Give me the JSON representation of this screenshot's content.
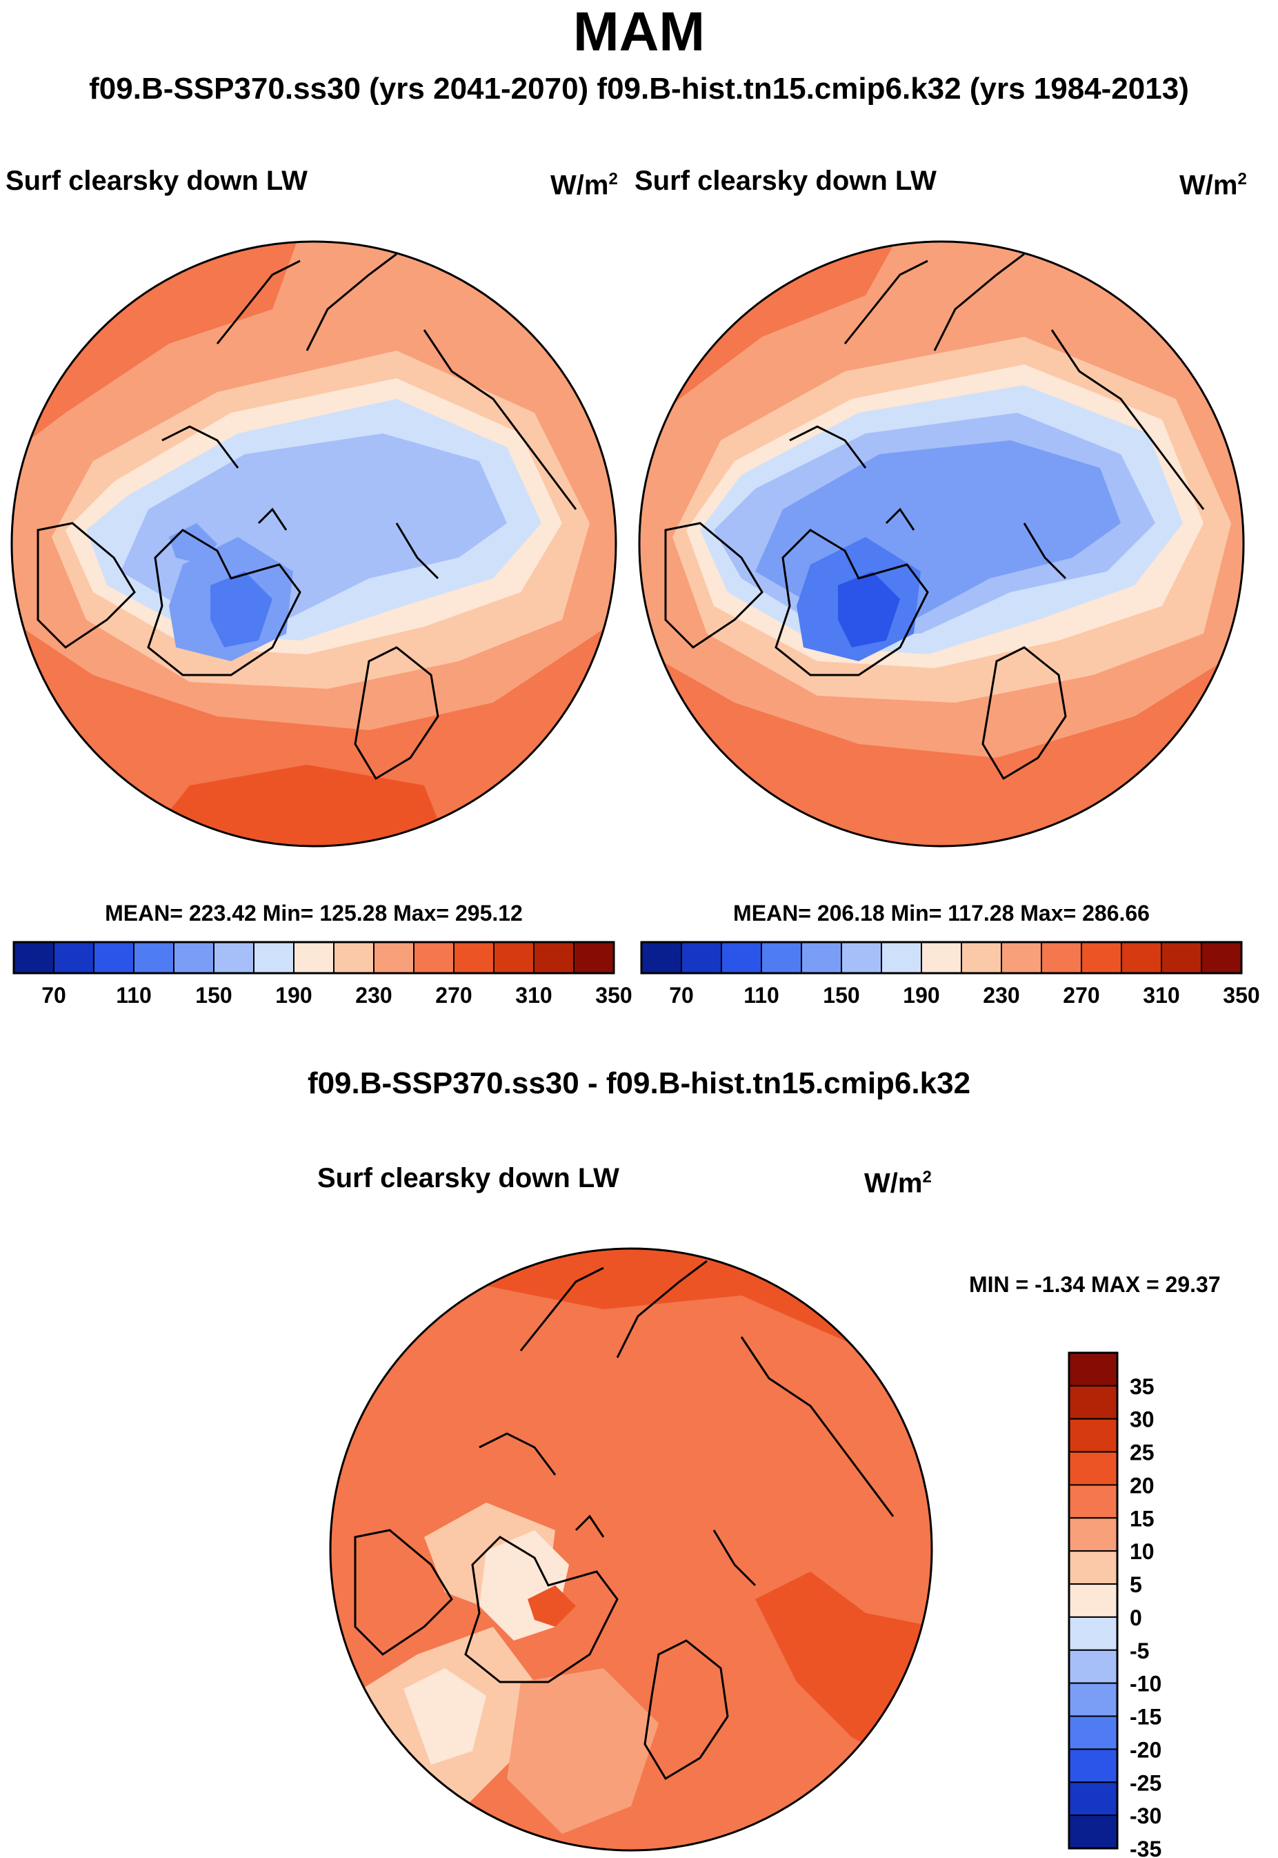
{
  "title": "MAM",
  "cases_line": "f09.B-SSP370.ss30 (yrs 2041-2070)  f09.B-hist.tn15.cmip6.k32 (yrs 1984-2013)",
  "panels": [
    {
      "variable": "Surf clearsky down LW",
      "units_base": "W/m",
      "units_exp": "2",
      "stats": "MEAN= 223.42  Min= 125.28  Max= 295.12"
    },
    {
      "variable": "Surf clearsky down LW",
      "units_base": "W/m",
      "units_exp": "2",
      "stats": "MEAN= 206.18  Min= 117.28  Max= 286.66"
    }
  ],
  "diff": {
    "title": "f09.B-SSP370.ss30 - f09.B-hist.tn15.cmip6.k32",
    "variable": "Surf clearsky down LW",
    "units_base": "W/m",
    "units_exp": "2",
    "minmax": "MIN =  -1.34 MAX =  29.37"
  },
  "colorbar_abs": {
    "colors": [
      "#0a1f8f",
      "#1537c4",
      "#2a55e8",
      "#4f7cf2",
      "#7a9ef5",
      "#a6bff8",
      "#cfe0fb",
      "#fde7d6",
      "#fbc9a8",
      "#f8a07a",
      "#f4774d",
      "#ec5426",
      "#d63a10",
      "#b32407",
      "#870d04"
    ],
    "tick_labels": [
      "70",
      "110",
      "150",
      "190",
      "230",
      "270",
      "310",
      "350"
    ]
  },
  "colorbar_diff": {
    "colors": [
      "#870d04",
      "#b32407",
      "#d63a10",
      "#ec5426",
      "#f4774d",
      "#f8a07a",
      "#fbc9a8",
      "#fde7d6",
      "#cfe0fb",
      "#a6bff8",
      "#7a9ef5",
      "#4f7cf2",
      "#2a55e8",
      "#1537c4",
      "#0a1f8f"
    ],
    "tick_labels": [
      "35",
      "30",
      "25",
      "20",
      "15",
      "10",
      "5",
      "0",
      "-5",
      "-10",
      "-15",
      "-20",
      "-25",
      "-30",
      "-35"
    ]
  },
  "map_colors": {
    "deep_blue": "#4f7cf2",
    "blue": "#7a9ef5",
    "light_blue": "#a6bff8",
    "pale_blue": "#cfe0fb",
    "cream": "#fde7d6",
    "peach": "#fbc9a8",
    "salmon": "#f8a07a",
    "orange": "#f4774d",
    "red_orange": "#ec5426",
    "dark_red": "#d63a10"
  }
}
